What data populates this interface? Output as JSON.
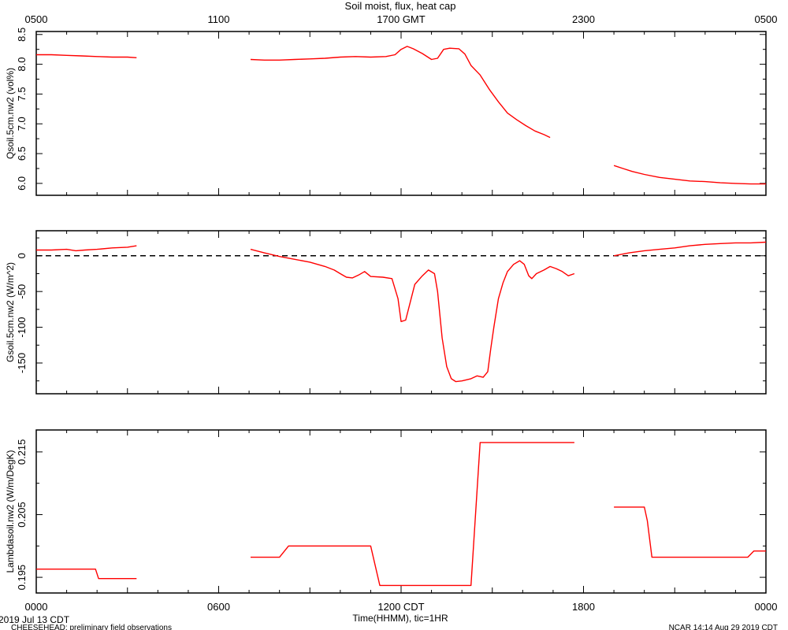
{
  "title": "Soil moist, flux, heat cap",
  "top_axis_ticks": [
    "0500",
    "1100",
    "1700 GMT",
    "2300",
    "0500"
  ],
  "bottom_axis_ticks": [
    "0000",
    "0600",
    "1200 CDT",
    "1800",
    "0000"
  ],
  "xlabel": "Time(HHMM), tic=1HR",
  "date_label": "2019 Jul 13 CDT",
  "footer_left": "CHEESEHEAD: preliminary field observations",
  "footer_right": "NCAR 14:14 Aug 29 2019 CDT",
  "colors": {
    "series": "#ff0000",
    "axes": "#000000",
    "zero_line": "#000000"
  },
  "chart_data": [
    {
      "type": "line",
      "ylabel": "Qsoil.5cm.nw2 (vol%)",
      "xlim": [
        0,
        24
      ],
      "ylim": [
        5.8,
        8.55
      ],
      "yticks": [
        6.0,
        6.5,
        7.0,
        7.5,
        8.0,
        8.5
      ],
      "ytick_labels": [
        "6.0",
        "6.5",
        "7.0",
        "7.5",
        "8.0",
        "8.5"
      ],
      "series": [
        {
          "segments": [
            [
              [
                0,
                8.16
              ],
              [
                0.5,
                8.16
              ],
              [
                1.0,
                8.15
              ],
              [
                1.5,
                8.14
              ],
              [
                2.0,
                8.13
              ],
              [
                2.5,
                8.12
              ],
              [
                3.0,
                8.12
              ],
              [
                3.3,
                8.11
              ]
            ],
            [
              [
                7.05,
                8.08
              ],
              [
                7.5,
                8.07
              ],
              [
                8.0,
                8.07
              ],
              [
                8.5,
                8.08
              ],
              [
                9.0,
                8.09
              ],
              [
                9.5,
                8.1
              ],
              [
                10.0,
                8.12
              ],
              [
                10.5,
                8.13
              ],
              [
                11.0,
                8.12
              ],
              [
                11.5,
                8.13
              ],
              [
                11.8,
                8.16
              ],
              [
                12.0,
                8.25
              ],
              [
                12.2,
                8.3
              ],
              [
                12.4,
                8.26
              ],
              [
                12.7,
                8.18
              ],
              [
                13.0,
                8.08
              ],
              [
                13.2,
                8.1
              ],
              [
                13.4,
                8.25
              ],
              [
                13.6,
                8.27
              ],
              [
                13.9,
                8.26
              ],
              [
                14.1,
                8.17
              ],
              [
                14.3,
                7.98
              ],
              [
                14.6,
                7.82
              ],
              [
                14.9,
                7.58
              ],
              [
                15.2,
                7.37
              ],
              [
                15.5,
                7.18
              ],
              [
                15.8,
                7.07
              ],
              [
                16.1,
                6.97
              ],
              [
                16.4,
                6.88
              ],
              [
                16.7,
                6.82
              ],
              [
                16.9,
                6.77
              ]
            ],
            [
              [
                19.0,
                6.3
              ],
              [
                19.3,
                6.25
              ],
              [
                19.6,
                6.2
              ],
              [
                20.0,
                6.15
              ],
              [
                20.5,
                6.1
              ],
              [
                21.0,
                6.07
              ],
              [
                21.5,
                6.04
              ],
              [
                22.0,
                6.03
              ],
              [
                22.5,
                6.01
              ],
              [
                23.0,
                6.0
              ],
              [
                23.5,
                5.99
              ],
              [
                24.0,
                5.99
              ]
            ]
          ]
        }
      ]
    },
    {
      "type": "line",
      "ylabel": "Gsoil.5cm.nw2 (W/m^2)",
      "xlim": [
        0,
        24
      ],
      "ylim": [
        -193,
        35
      ],
      "yticks": [
        -150,
        -100,
        -50,
        0
      ],
      "ytick_labels": [
        "-150",
        "-100",
        "-50",
        "0"
      ],
      "zero_line": true,
      "series": [
        {
          "segments": [
            [
              [
                0,
                8
              ],
              [
                0.5,
                8
              ],
              [
                1.0,
                9
              ],
              [
                1.3,
                7
              ],
              [
                1.6,
                8
              ],
              [
                2.0,
                9
              ],
              [
                2.5,
                11
              ],
              [
                3.0,
                12
              ],
              [
                3.3,
                14
              ]
            ],
            [
              [
                7.05,
                9
              ],
              [
                7.5,
                4
              ],
              [
                8.0,
                -1
              ],
              [
                8.5,
                -5
              ],
              [
                9.0,
                -9
              ],
              [
                9.5,
                -15
              ],
              [
                9.8,
                -20
              ],
              [
                10.0,
                -25
              ],
              [
                10.2,
                -30
              ],
              [
                10.4,
                -31
              ],
              [
                10.6,
                -27
              ],
              [
                10.8,
                -22
              ],
              [
                11.0,
                -29
              ],
              [
                11.4,
                -30
              ],
              [
                11.7,
                -32
              ],
              [
                11.9,
                -60
              ],
              [
                12.0,
                -92
              ],
              [
                12.15,
                -90
              ],
              [
                12.3,
                -65
              ],
              [
                12.45,
                -40
              ],
              [
                12.7,
                -28
              ],
              [
                12.9,
                -20
              ],
              [
                13.1,
                -25
              ],
              [
                13.2,
                -50
              ],
              [
                13.35,
                -115
              ],
              [
                13.5,
                -155
              ],
              [
                13.65,
                -172
              ],
              [
                13.8,
                -176
              ],
              [
                14.0,
                -175
              ],
              [
                14.3,
                -172
              ],
              [
                14.5,
                -168
              ],
              [
                14.7,
                -170
              ],
              [
                14.85,
                -162
              ],
              [
                14.95,
                -130
              ],
              [
                15.05,
                -100
              ],
              [
                15.2,
                -60
              ],
              [
                15.35,
                -38
              ],
              [
                15.5,
                -22
              ],
              [
                15.7,
                -12
              ],
              [
                15.9,
                -7
              ],
              [
                16.05,
                -12
              ],
              [
                16.2,
                -28
              ],
              [
                16.3,
                -32
              ],
              [
                16.45,
                -25
              ],
              [
                16.7,
                -20
              ],
              [
                16.9,
                -15
              ],
              [
                17.1,
                -18
              ],
              [
                17.3,
                -22
              ],
              [
                17.5,
                -28
              ],
              [
                17.7,
                -25
              ]
            ],
            [
              [
                19.0,
                0
              ],
              [
                19.5,
                4
              ],
              [
                20.0,
                7
              ],
              [
                20.5,
                9
              ],
              [
                21.0,
                11
              ],
              [
                21.5,
                14
              ],
              [
                22.0,
                16
              ],
              [
                22.5,
                17
              ],
              [
                23.0,
                18
              ],
              [
                23.5,
                18
              ],
              [
                24.0,
                19
              ]
            ]
          ]
        }
      ]
    },
    {
      "type": "line",
      "ylabel": "Lambdasoil.nw2 (W/m/DegK)",
      "xlim": [
        0,
        24
      ],
      "ylim": [
        0.1925,
        0.2185
      ],
      "yticks": [
        0.195,
        0.205,
        0.215
      ],
      "ytick_labels": [
        "0.195",
        "0.205",
        "0.215"
      ],
      "series": [
        {
          "segments": [
            [
              [
                0,
                0.1963
              ],
              [
                1.95,
                0.1963
              ],
              [
                2.05,
                0.1948
              ],
              [
                3.3,
                0.1948
              ]
            ],
            [
              [
                7.05,
                0.1982
              ],
              [
                8.0,
                0.1982
              ],
              [
                8.3,
                0.2
              ],
              [
                11.0,
                0.2
              ],
              [
                11.3,
                0.1937
              ],
              [
                14.3,
                0.1937
              ],
              [
                14.6,
                0.2165
              ],
              [
                17.7,
                0.2165
              ]
            ],
            [
              [
                19.0,
                0.2062
              ],
              [
                20.0,
                0.2062
              ],
              [
                20.1,
                0.204
              ],
              [
                20.25,
                0.1982
              ],
              [
                23.4,
                0.1982
              ],
              [
                23.6,
                0.1992
              ],
              [
                24.0,
                0.1992
              ]
            ]
          ]
        }
      ]
    }
  ]
}
